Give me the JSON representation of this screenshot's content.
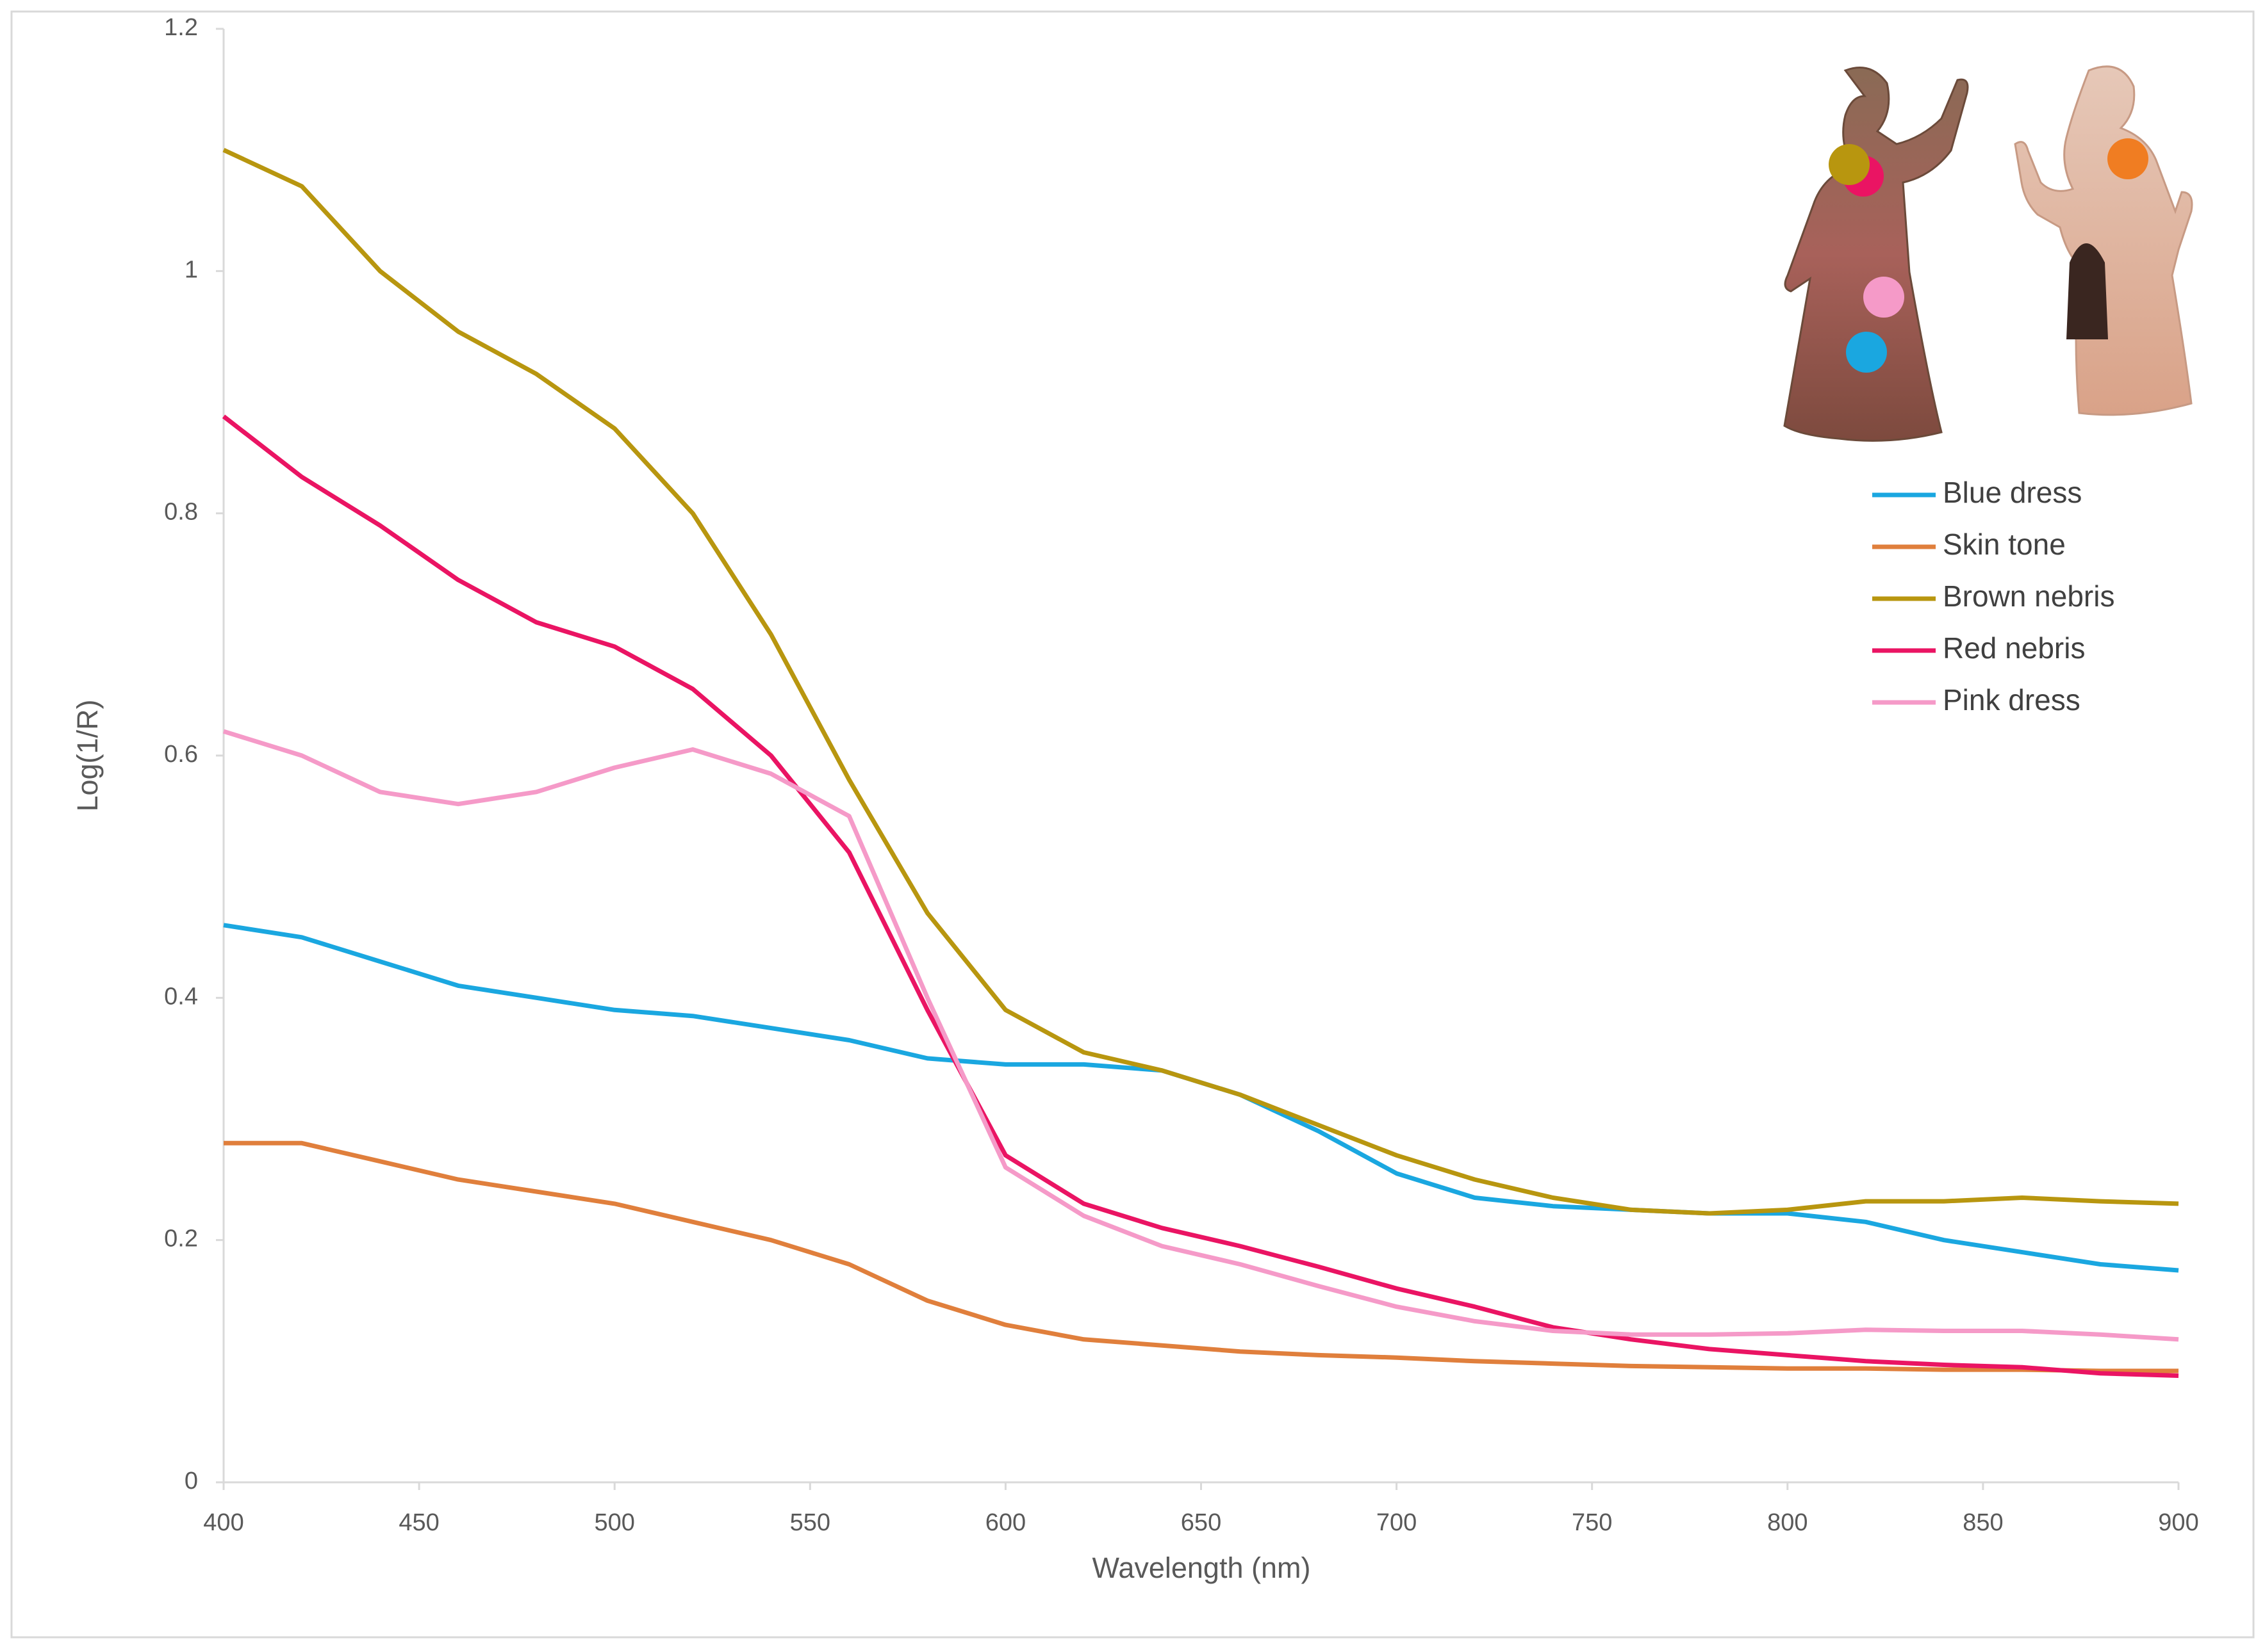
{
  "chart_data": {
    "type": "line",
    "x_label": "Wavelength (nm)",
    "y_label": "Log(1/R)",
    "x": [
      400,
      420,
      440,
      460,
      480,
      500,
      520,
      540,
      560,
      580,
      600,
      620,
      640,
      660,
      680,
      700,
      720,
      740,
      760,
      780,
      800,
      820,
      840,
      860,
      880,
      900
    ],
    "series": [
      {
        "name": "Blue dress",
        "color": "#1aa7e0",
        "values": [
          0.46,
          0.45,
          0.43,
          0.41,
          0.4,
          0.39,
          0.385,
          0.375,
          0.365,
          0.35,
          0.345,
          0.345,
          0.34,
          0.32,
          0.29,
          0.255,
          0.235,
          0.228,
          0.225,
          0.222,
          0.222,
          0.215,
          0.2,
          0.19,
          0.18,
          0.175
        ]
      },
      {
        "name": "Skin tone",
        "color": "#e07f3c",
        "values": [
          0.28,
          0.28,
          0.265,
          0.25,
          0.24,
          0.23,
          0.215,
          0.2,
          0.18,
          0.15,
          0.13,
          0.118,
          0.113,
          0.108,
          0.105,
          0.103,
          0.1,
          0.098,
          0.096,
          0.095,
          0.094,
          0.094,
          0.093,
          0.093,
          0.092,
          0.092
        ]
      },
      {
        "name": "Brown nebris",
        "color": "#b8960f",
        "values": [
          1.1,
          1.07,
          1.0,
          0.95,
          0.915,
          0.87,
          0.8,
          0.7,
          0.58,
          0.47,
          0.39,
          0.355,
          0.34,
          0.32,
          0.295,
          0.27,
          0.25,
          0.235,
          0.225,
          0.222,
          0.225,
          0.232,
          0.232,
          0.235,
          0.232,
          0.23
        ]
      },
      {
        "name": "Red nebris",
        "color": "#ea1463",
        "values": [
          0.88,
          0.83,
          0.79,
          0.745,
          0.71,
          0.69,
          0.655,
          0.6,
          0.52,
          0.39,
          0.27,
          0.23,
          0.21,
          0.195,
          0.178,
          0.16,
          0.145,
          0.128,
          0.118,
          0.11,
          0.105,
          0.1,
          0.097,
          0.095,
          0.09,
          0.088
        ]
      },
      {
        "name": "Pink dress",
        "color": "#f59ac8",
        "values": [
          0.62,
          0.6,
          0.57,
          0.56,
          0.57,
          0.59,
          0.605,
          0.585,
          0.55,
          0.4,
          0.26,
          0.22,
          0.195,
          0.18,
          0.162,
          0.145,
          0.133,
          0.125,
          0.122,
          0.122,
          0.123,
          0.126,
          0.125,
          0.125,
          0.122,
          0.118
        ]
      }
    ],
    "xlim": [
      400,
      900
    ],
    "xticks": [
      400,
      450,
      500,
      550,
      600,
      650,
      700,
      750,
      800,
      850,
      900
    ],
    "ylim": [
      0,
      1.2
    ],
    "yticks": [
      0,
      0.2,
      0.4,
      0.6,
      0.8,
      1,
      1.2
    ],
    "grid": false,
    "legend": "right"
  }
}
